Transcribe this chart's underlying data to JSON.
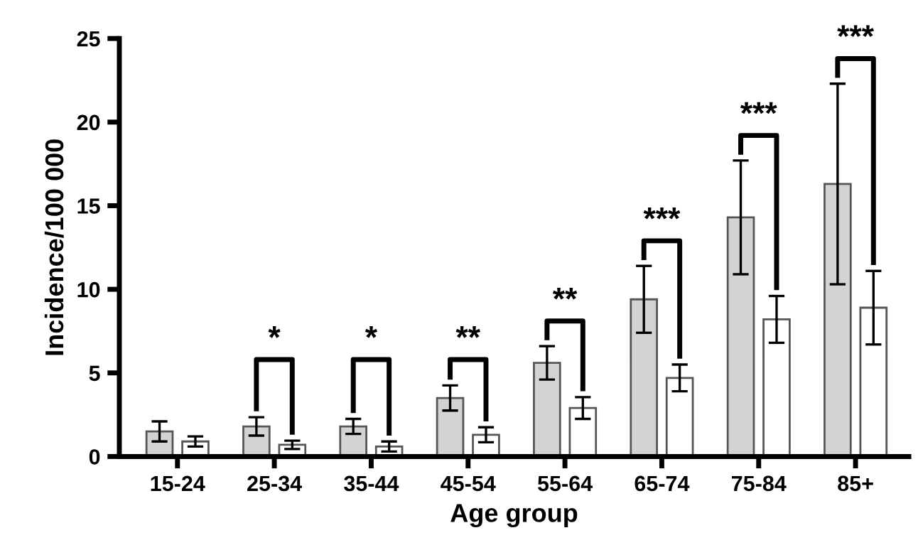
{
  "chart_data": {
    "type": "bar",
    "xlabel": "Age group",
    "ylabel": "Incidence/100 000",
    "categories": [
      "15-24",
      "25-34",
      "35-44",
      "45-54",
      "55-64",
      "65-74",
      "75-84",
      "85+"
    ],
    "series": [
      {
        "color": "#d3d3d3",
        "values": [
          1.5,
          1.8,
          1.8,
          3.5,
          5.6,
          9.4,
          14.3,
          16.3
        ],
        "errors": [
          0.6,
          0.55,
          0.45,
          0.75,
          1.0,
          2.0,
          3.4,
          6.0
        ]
      },
      {
        "color": "#ffffff",
        "values": [
          0.9,
          0.7,
          0.6,
          1.3,
          2.9,
          4.7,
          8.2,
          8.9
        ],
        "errors": [
          0.3,
          0.25,
          0.3,
          0.45,
          0.65,
          0.8,
          1.4,
          2.2
        ]
      }
    ],
    "annotations": [
      "*",
      "*",
      "**",
      "**",
      "***",
      "***",
      "***"
    ],
    "ylim": [
      0,
      25
    ],
    "yticks": [
      0,
      5,
      10,
      15,
      20,
      25
    ],
    "grid": false,
    "legend": false
  }
}
